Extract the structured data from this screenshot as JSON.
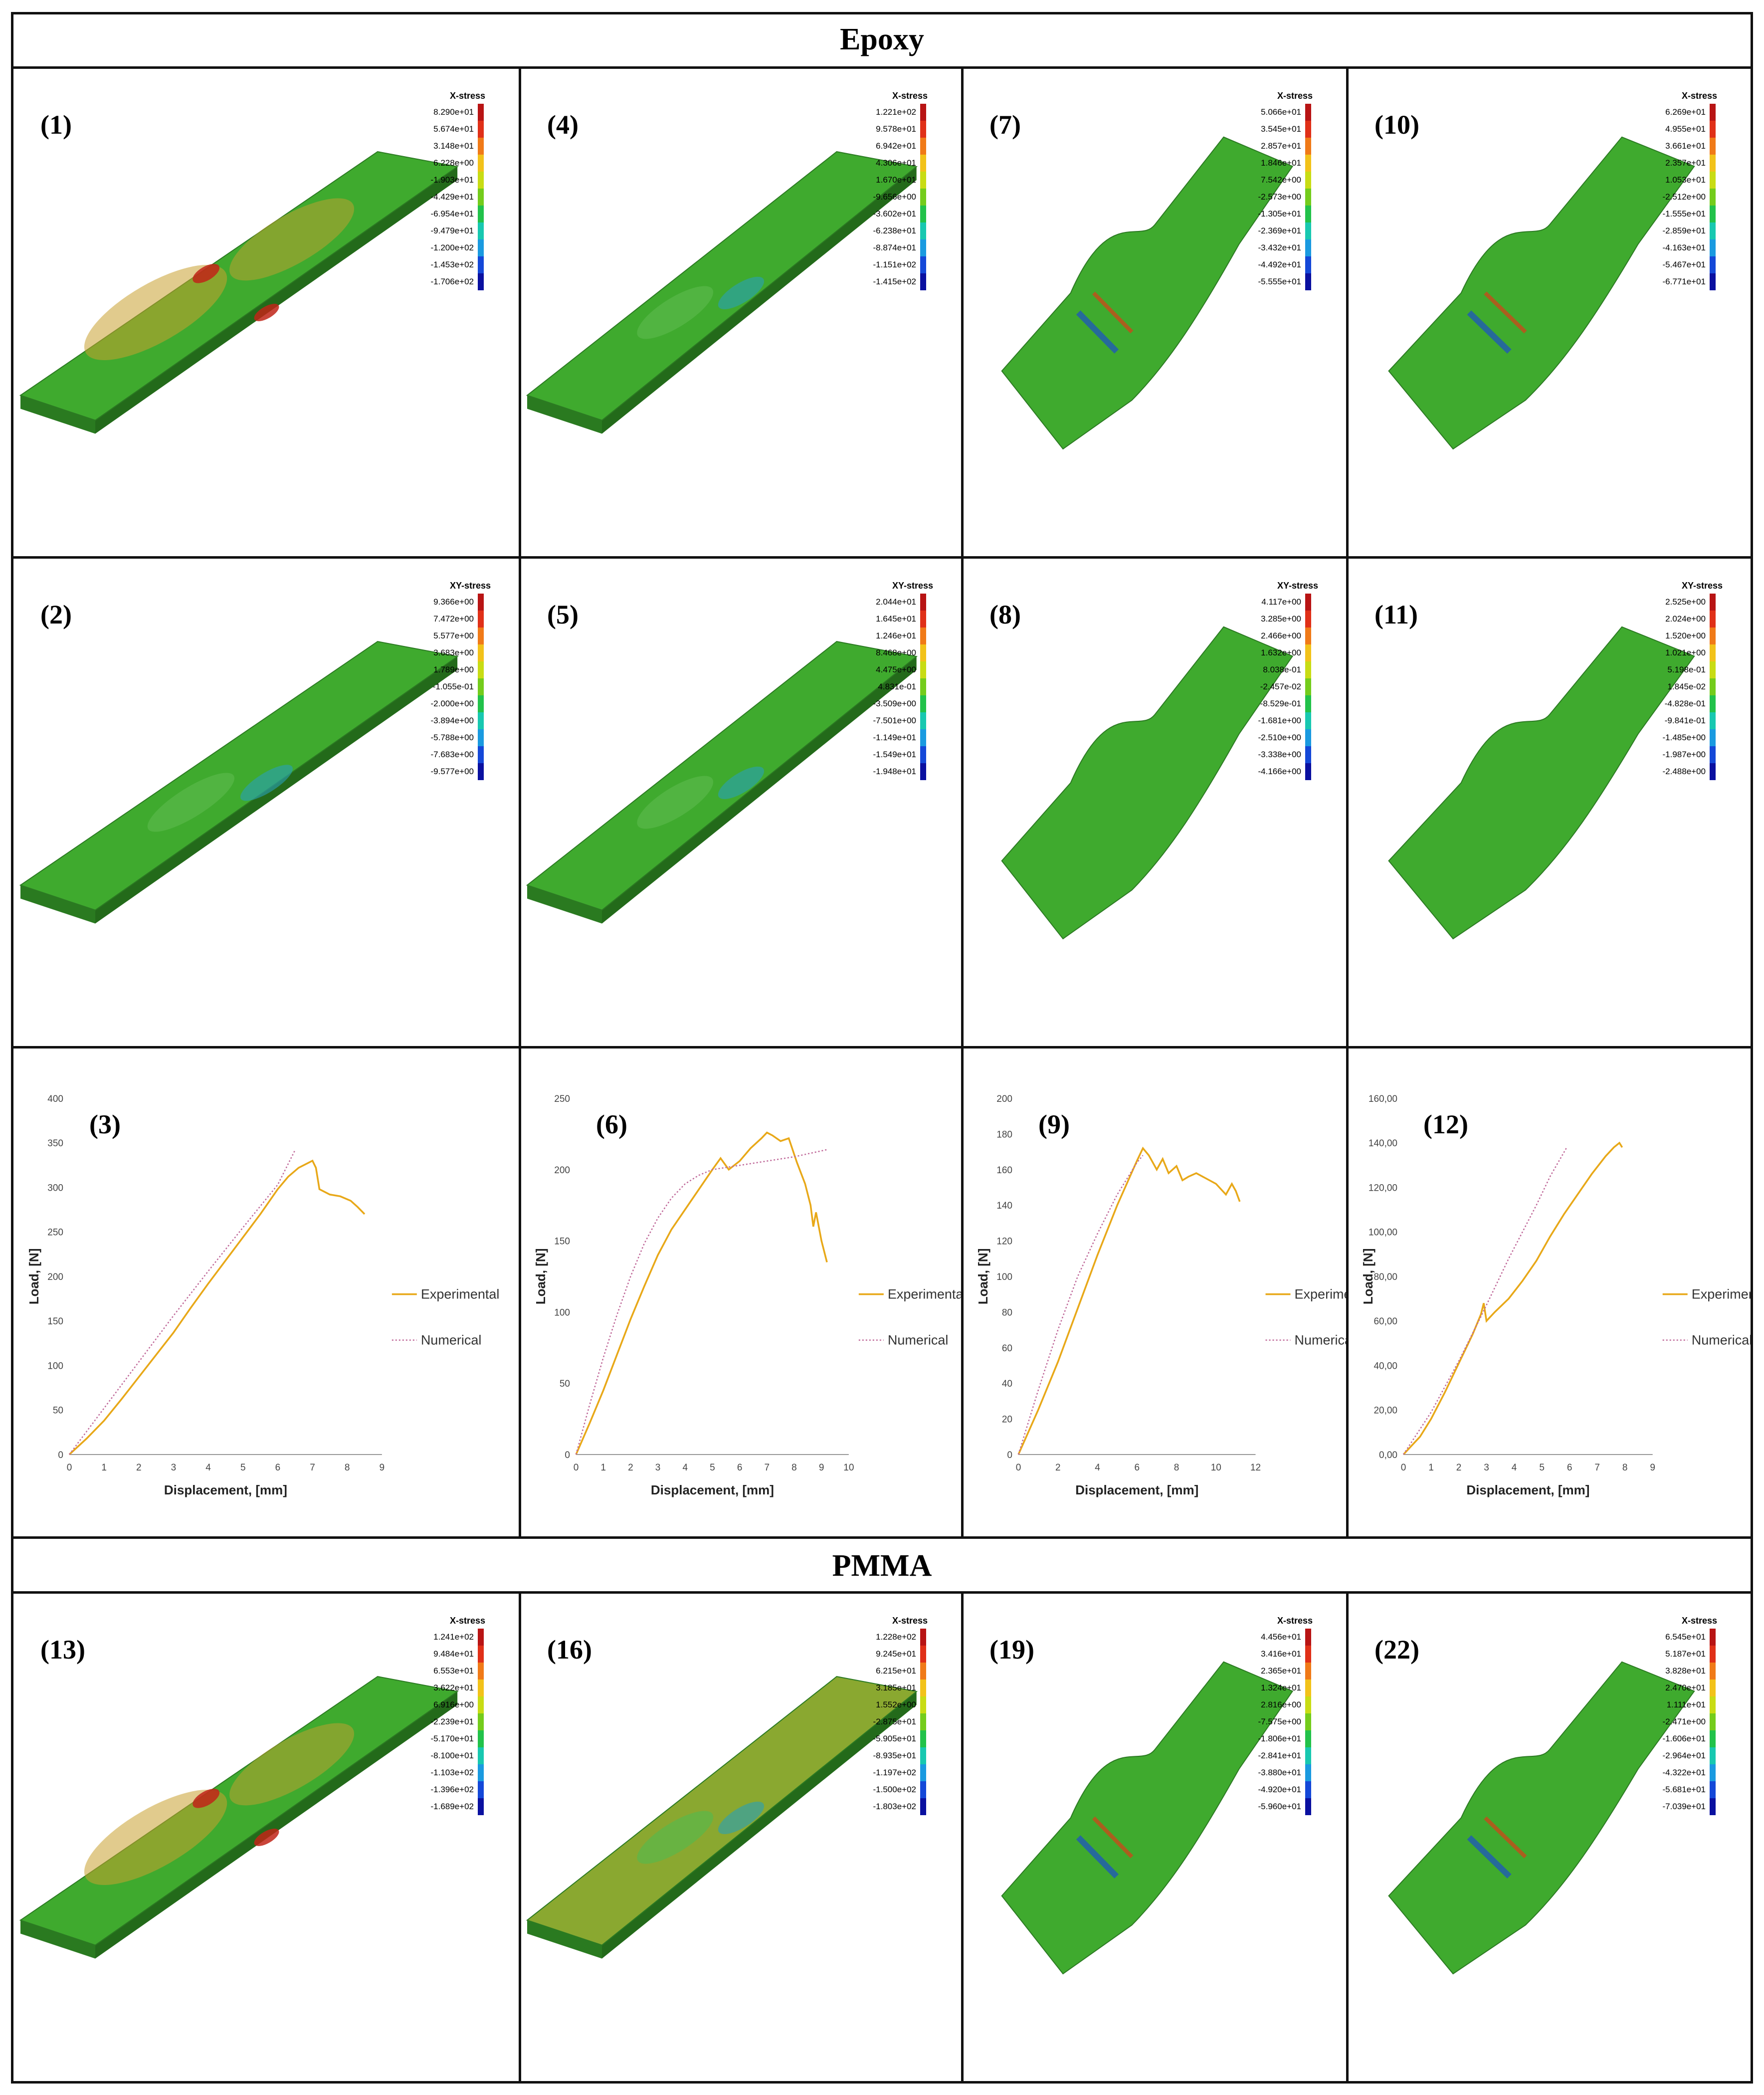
{
  "sections": {
    "epoxy": "Epoxy",
    "pmma": "PMMA"
  },
  "colors": {
    "legend": [
      "#b81414",
      "#e03018",
      "#f07a18",
      "#f2c21a",
      "#c8dc14",
      "#74cc1c",
      "#22c24a",
      "#18c8b0",
      "#1a9ae0",
      "#1448d8",
      "#0a10a0"
    ],
    "plate_green": "#3faa2e",
    "plate_olive": "#8aa830",
    "experimental": "#e8a818",
    "numerical": "#c06a9a"
  },
  "stress_panels": [
    {
      "id": "p1",
      "label": "(1)",
      "title": "X-stress",
      "ticks": [
        "8.290e+01",
        "5.674e+01",
        "3.148e+01",
        "6.228e+00",
        "-1.903e+01",
        "-4.429e+01",
        "-6.954e+01",
        "-9.479e+01",
        "-1.200e+02",
        "-1.453e+02",
        "-1.706e+02"
      ]
    },
    {
      "id": "p4",
      "label": "(4)",
      "title": "X-stress",
      "ticks": [
        "1.221e+02",
        "9.578e+01",
        "6.942e+01",
        "4.306e+01",
        "1.670e+01",
        "-9.656e+00",
        "-3.602e+01",
        "-6.238e+01",
        "-8.874e+01",
        "-1.151e+02",
        "-1.415e+02"
      ]
    },
    {
      "id": "p7",
      "label": "(7)",
      "title": "X-stress",
      "ticks": [
        "5.066e+01",
        "3.545e+01",
        "2.857e+01",
        "1.846e+01",
        "7.542e+00",
        "-2.573e+00",
        "-1.305e+01",
        "-2.369e+01",
        "-3.432e+01",
        "-4.492e+01",
        "-5.555e+01"
      ]
    },
    {
      "id": "p10",
      "label": "(10)",
      "title": "X-stress",
      "ticks": [
        "6.269e+01",
        "4.955e+01",
        "3.661e+01",
        "2.357e+01",
        "1.053e+01",
        "-2.512e+00",
        "-1.555e+01",
        "-2.859e+01",
        "-4.163e+01",
        "-5.467e+01",
        "-6.771e+01"
      ]
    },
    {
      "id": "p2",
      "label": "(2)",
      "title": "XY-stress",
      "ticks": [
        "9.366e+00",
        "7.472e+00",
        "5.577e+00",
        "3.683e+00",
        "1.789e+00",
        "-1.055e-01",
        "-2.000e+00",
        "-3.894e+00",
        "-5.788e+00",
        "-7.683e+00",
        "-9.577e+00"
      ]
    },
    {
      "id": "p5",
      "label": "(5)",
      "title": "XY-stress",
      "ticks": [
        "2.044e+01",
        "1.645e+01",
        "1.246e+01",
        "8.468e+00",
        "4.475e+00",
        "4.831e-01",
        "-3.509e+00",
        "-7.501e+00",
        "-1.149e+01",
        "-1.549e+01",
        "-1.948e+01"
      ]
    },
    {
      "id": "p8",
      "label": "(8)",
      "title": "XY-stress",
      "ticks": [
        "4.117e+00",
        "3.285e+00",
        "2.466e+00",
        "1.632e+00",
        "8.038e-01",
        "-2.457e-02",
        "-8.529e-01",
        "-1.681e+00",
        "-2.510e+00",
        "-3.338e+00",
        "-4.166e+00"
      ]
    },
    {
      "id": "p11",
      "label": "(11)",
      "title": "XY-stress",
      "ticks": [
        "2.525e+00",
        "2.024e+00",
        "1.520e+00",
        "1.021e+00",
        "5.198e-01",
        "1.845e-02",
        "-4.828e-01",
        "-9.841e-01",
        "-1.485e+00",
        "-1.987e+00",
        "-2.488e+00"
      ]
    },
    {
      "id": "p13",
      "label": "(13)",
      "title": "X-stress",
      "ticks": [
        "1.241e+02",
        "9.484e+01",
        "6.553e+01",
        "3.622e+01",
        "6.916e+00",
        "-2.239e+01",
        "-5.170e+01",
        "-8.100e+01",
        "-1.103e+02",
        "-1.396e+02",
        "-1.689e+02"
      ]
    },
    {
      "id": "p16",
      "label": "(16)",
      "title": "X-stress",
      "ticks": [
        "1.228e+02",
        "9.245e+01",
        "6.215e+01",
        "3.185e+01",
        "1.552e+00",
        "-2.875e+01",
        "-5.905e+01",
        "-8.935e+01",
        "-1.197e+02",
        "-1.500e+02",
        "-1.803e+02"
      ]
    },
    {
      "id": "p19",
      "label": "(19)",
      "title": "X-stress",
      "ticks": [
        "4.456e+01",
        "3.416e+01",
        "2.365e+01",
        "1.324e+01",
        "2.816e+00",
        "-7.575e+00",
        "-1.806e+01",
        "-2.841e+01",
        "-3.880e+01",
        "-4.920e+01",
        "-5.960e+01"
      ]
    },
    {
      "id": "p22",
      "label": "(22)",
      "title": "X-stress",
      "ticks": [
        "6.545e+01",
        "5.187e+01",
        "3.828e+01",
        "2.470e+01",
        "1.111e+01",
        "-2.471e+00",
        "-1.606e+01",
        "-2.964e+01",
        "-4.322e+01",
        "-5.681e+01",
        "-7.039e+01"
      ]
    }
  ],
  "charts": [
    {
      "id": "p3",
      "label": "(3)",
      "legend": [
        "Experimental",
        "Numerical"
      ]
    },
    {
      "id": "p6",
      "label": "(6)",
      "legend": [
        "Experimental",
        "Numerical"
      ]
    },
    {
      "id": "p9",
      "label": "(9)",
      "legend": [
        "Experimental",
        "Numerical"
      ]
    },
    {
      "id": "p12",
      "label": "(12)",
      "legend": [
        "Experimenta",
        "Numerical"
      ]
    }
  ],
  "chart_data": [
    {
      "type": "line",
      "xlabel": "Displacement, [mm]",
      "ylabel": "Load, [N]",
      "xlim": [
        0,
        9
      ],
      "ylim": [
        0,
        400
      ],
      "xticks": [
        "0",
        "1",
        "2",
        "3",
        "4",
        "5",
        "6",
        "7",
        "8",
        "9"
      ],
      "yticks": [
        "0",
        "50",
        "100",
        "150",
        "200",
        "250",
        "300",
        "350",
        "400"
      ],
      "series": [
        {
          "name": "Experimental",
          "x": [
            0,
            0.5,
            1,
            1.5,
            2,
            2.5,
            3,
            3.5,
            4,
            4.5,
            5,
            5.5,
            6,
            6.3,
            6.6,
            6.9,
            7.0,
            7.1,
            7.2,
            7.5,
            7.8,
            8.1,
            8.3,
            8.5
          ],
          "y": [
            0,
            18,
            38,
            62,
            87,
            112,
            137,
            165,
            192,
            218,
            244,
            270,
            298,
            312,
            322,
            328,
            330,
            322,
            298,
            292,
            290,
            285,
            278,
            270
          ]
        },
        {
          "name": "Numerical",
          "x": [
            0,
            1,
            2,
            3,
            4,
            5,
            6,
            6.5
          ],
          "y": [
            0,
            52,
            104,
            156,
            206,
            255,
            303,
            342
          ]
        }
      ]
    },
    {
      "type": "line",
      "xlabel": "Displacement, [mm]",
      "ylabel": "Load, [N]",
      "xlim": [
        0,
        10
      ],
      "ylim": [
        0,
        250
      ],
      "xticks": [
        "0",
        "1",
        "2",
        "3",
        "4",
        "5",
        "6",
        "7",
        "8",
        "9",
        "10"
      ],
      "yticks": [
        "0",
        "50",
        "100",
        "150",
        "200",
        "250"
      ],
      "series": [
        {
          "name": "Experimental",
          "x": [
            0,
            0.5,
            1,
            1.5,
            2,
            2.5,
            3,
            3.5,
            4,
            4.5,
            5,
            5.3,
            5.6,
            6,
            6.4,
            6.8,
            7.0,
            7.2,
            7.5,
            7.8,
            8.1,
            8.4,
            8.6,
            8.7,
            8.8,
            9.0,
            9.2
          ],
          "y": [
            0,
            22,
            45,
            70,
            95,
            118,
            140,
            158,
            172,
            186,
            200,
            208,
            200,
            206,
            215,
            222,
            226,
            224,
            220,
            222,
            205,
            190,
            175,
            160,
            170,
            150,
            135
          ]
        },
        {
          "name": "Numerical",
          "x": [
            0,
            0.5,
            1,
            1.5,
            2,
            2.5,
            3,
            3.5,
            4,
            4.5,
            5,
            6,
            7,
            8,
            9.2
          ],
          "y": [
            0,
            35,
            68,
            98,
            125,
            148,
            166,
            180,
            190,
            196,
            200,
            203,
            206,
            209,
            214
          ]
        }
      ]
    },
    {
      "type": "line",
      "xlabel": "Displacement, [mm]",
      "ylabel": "Load, [N]",
      "xlim": [
        0,
        12
      ],
      "ylim": [
        0,
        200
      ],
      "xticks": [
        "0",
        "2",
        "4",
        "6",
        "8",
        "10",
        "12"
      ],
      "yticks": [
        "0",
        "20",
        "40",
        "60",
        "80",
        "100",
        "120",
        "140",
        "160",
        "180",
        "200"
      ],
      "series": [
        {
          "name": "Experimental",
          "x": [
            0,
            1,
            2,
            3,
            4,
            5,
            6,
            6.3,
            6.6,
            7,
            7.3,
            7.6,
            8,
            8.3,
            8.6,
            9,
            9.5,
            10,
            10.5,
            10.8,
            11,
            11.2
          ],
          "y": [
            0,
            25,
            52,
            82,
            112,
            140,
            165,
            172,
            168,
            160,
            166,
            158,
            162,
            154,
            156,
            158,
            155,
            152,
            146,
            152,
            148,
            142
          ]
        },
        {
          "name": "Numerical",
          "x": [
            0,
            1,
            2,
            3,
            4,
            5,
            6,
            6.3
          ],
          "y": [
            0,
            36,
            70,
            100,
            124,
            146,
            164,
            168
          ]
        }
      ]
    },
    {
      "type": "line",
      "xlabel": "Displacement, [mm]",
      "ylabel": "Load, [N]",
      "xlim": [
        0,
        9
      ],
      "ylim": [
        0,
        160
      ],
      "xticks": [
        "0",
        "1",
        "2",
        "3",
        "4",
        "5",
        "6",
        "7",
        "8",
        "9"
      ],
      "yticks": [
        "0,00",
        "20,00",
        "40,00",
        "60,00",
        "80,00",
        "100,00",
        "120,00",
        "140,00",
        "160,00"
      ],
      "series": [
        {
          "name": "Experimenta",
          "x": [
            0,
            0.3,
            0.6,
            1,
            1.5,
            2,
            2.5,
            2.8,
            2.9,
            3.0,
            3.3,
            3.8,
            4.3,
            4.8,
            5.3,
            5.8,
            6.3,
            6.8,
            7.3,
            7.6,
            7.8,
            7.9
          ],
          "y": [
            0,
            4,
            8,
            16,
            28,
            41,
            54,
            63,
            68,
            60,
            64,
            70,
            78,
            87,
            98,
            108,
            117,
            126,
            134,
            138,
            140,
            138
          ]
        },
        {
          "name": "Numerical",
          "x": [
            0,
            1,
            2,
            2.8,
            3.3,
            3.8,
            4.3,
            4.8,
            5.3,
            5.9
          ],
          "y": [
            0,
            19,
            42,
            62,
            75,
            88,
            100,
            112,
            125,
            138
          ]
        }
      ]
    }
  ]
}
